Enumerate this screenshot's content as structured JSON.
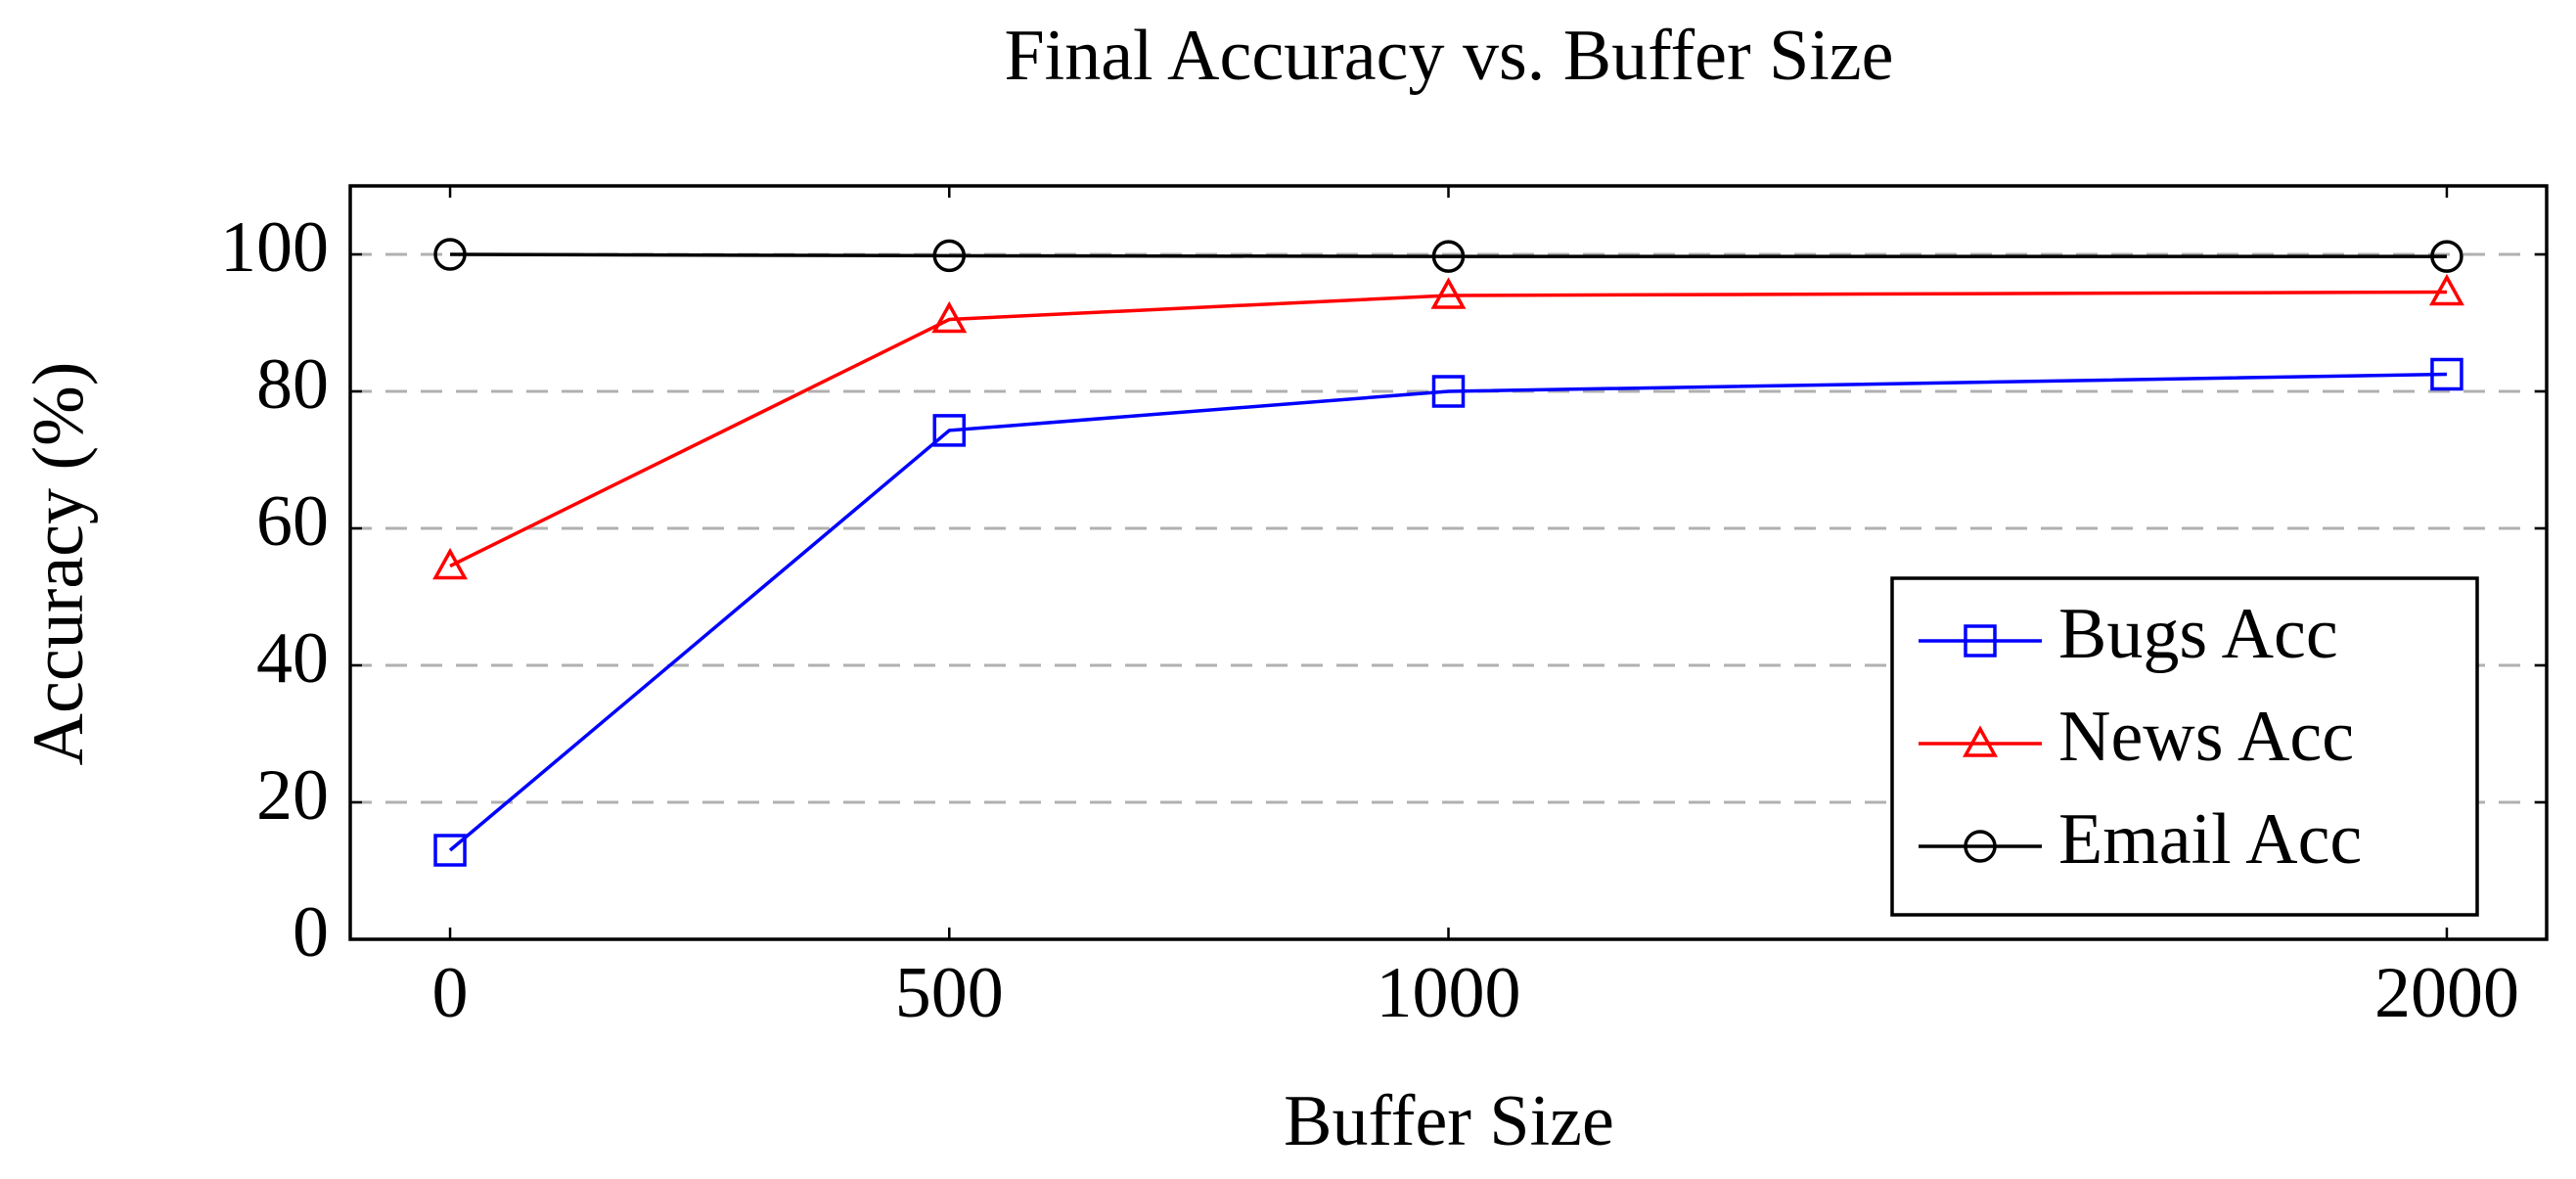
{
  "chart_data": {
    "type": "line",
    "title": "Final Accuracy vs. Buffer Size",
    "x_label": "Buffer Size",
    "y_label": "Accuracy (%)",
    "x": [
      0,
      500,
      1000,
      2000
    ],
    "series": [
      {
        "name": "Bugs Acc",
        "color": "#0000ff",
        "marker": "square",
        "values": [
          13,
          74.3,
          80,
          82.5
        ]
      },
      {
        "name": "News Acc",
        "color": "#ff0000",
        "marker": "triangle",
        "values": [
          54.5,
          90.5,
          94,
          94.5
        ]
      },
      {
        "name": "Email Acc",
        "color": "#000000",
        "marker": "circle",
        "values": [
          100,
          99.8,
          99.7,
          99.7
        ]
      }
    ],
    "xlim": [
      -100,
      2100
    ],
    "ylim": [
      0,
      110
    ],
    "xticks": [
      0,
      500,
      1000,
      2000
    ],
    "yticks": [
      0,
      20,
      40,
      60,
      80,
      100
    ],
    "grid": true,
    "legend": "south east"
  }
}
